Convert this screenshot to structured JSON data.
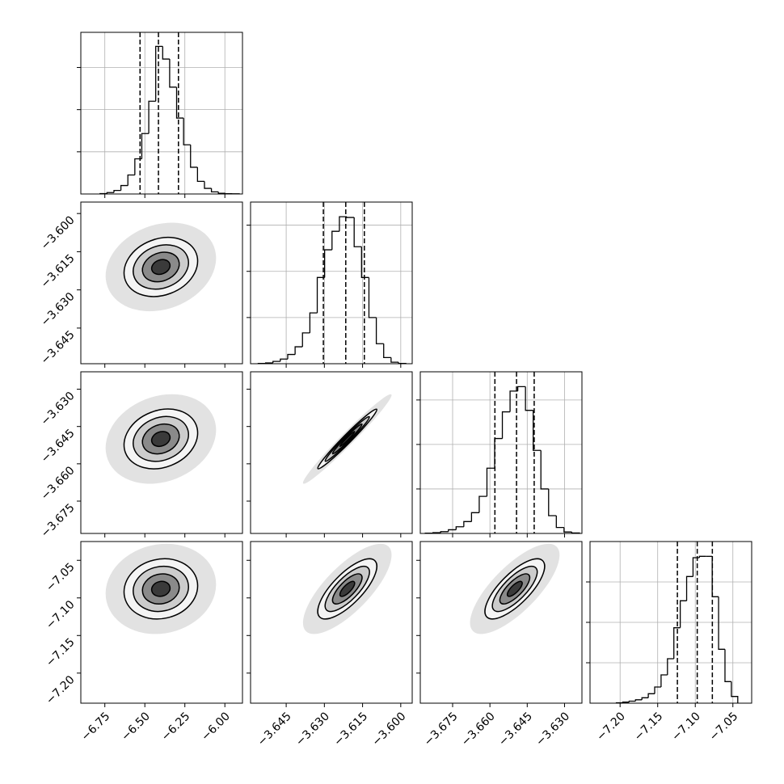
{
  "chart_data": {
    "type": "corner",
    "color": "#000000",
    "levels": [
      0.5,
      1,
      1.5,
      2
    ],
    "cloud": 3,
    "parameters": [
      {
        "lim": [
          -6.9,
          -5.89
        ],
        "mean": -6.4,
        "sd": 0.115,
        "ticks": [
          {
            "value": -6.75,
            "label": "−6.75"
          },
          {
            "value": -6.5,
            "label": "−6.50"
          },
          {
            "value": -6.25,
            "label": "−6.25"
          },
          {
            "value": -6.0,
            "label": "−6.00"
          }
        ],
        "quantiles": [
          -6.53,
          -6.415,
          -6.29
        ],
        "hist": {
          "ylim": [
            0,
            1150
          ],
          "yticks": [
            300,
            600,
            900
          ],
          "bins": [
            -6.78,
            -6.7365,
            -6.693,
            -6.6495,
            -6.606,
            -6.5625,
            -6.519,
            -6.4755,
            -6.432,
            -6.3885,
            -6.345,
            -6.3015,
            -6.258,
            -6.2145,
            -6.171,
            -6.1275,
            -6.084,
            -6.0405,
            -5.997,
            -5.9535,
            -5.91
          ],
          "counts": [
            3,
            10,
            25,
            60,
            135,
            250,
            430,
            660,
            1050,
            960,
            760,
            540,
            350,
            190,
            90,
            40,
            15,
            5,
            2,
            1
          ]
        }
      },
      {
        "lim": [
          -3.659,
          -3.5955
        ],
        "mean": -3.621,
        "sd": 0.0058,
        "ticks": [
          {
            "value": -3.645,
            "label": "−3.645"
          },
          {
            "value": -3.63,
            "label": "−3.630"
          },
          {
            "value": -3.615,
            "label": "−3.615"
          },
          {
            "value": -3.6,
            "label": "−3.600"
          }
        ],
        "quantiles": [
          -3.6304,
          -3.6216,
          -3.6143
        ],
        "hist": {
          "ylim": [
            0,
            1050
          ],
          "yticks": [
            300,
            600,
            900
          ],
          "bins": [
            -3.656,
            -3.6531,
            -3.6502,
            -3.6473,
            -3.6444,
            -3.6415,
            -3.6386,
            -3.6357,
            -3.6328,
            -3.6299,
            -3.627,
            -3.6241,
            -3.6212,
            -3.6183,
            -3.6154,
            -3.6125,
            -3.6096,
            -3.6067,
            -3.6038,
            -3.6009,
            -3.598
          ],
          "counts": [
            2,
            5,
            15,
            30,
            60,
            110,
            200,
            330,
            560,
            740,
            860,
            955,
            950,
            760,
            560,
            300,
            130,
            40,
            10,
            2
          ]
        }
      },
      {
        "lim": [
          -3.688,
          -3.623
        ],
        "mean": -3.65,
        "sd": 0.006,
        "ticks": [
          {
            "value": -3.675,
            "label": "−3.675"
          },
          {
            "value": -3.66,
            "label": "−3.660"
          },
          {
            "value": -3.645,
            "label": "−3.645"
          },
          {
            "value": -3.63,
            "label": "−3.630"
          }
        ],
        "quantiles": [
          -3.658,
          -3.6493,
          -3.6422
        ],
        "hist": {
          "ylim": [
            0,
            1090
          ],
          "yticks": [
            300,
            600,
            900
          ],
          "bins": [
            -3.686,
            -3.6829,
            -3.6798,
            -3.6767,
            -3.6736,
            -3.6705,
            -3.6674,
            -3.6643,
            -3.6612,
            -3.6581,
            -3.655,
            -3.6519,
            -3.6488,
            -3.6457,
            -3.6426,
            -3.6395,
            -3.6364,
            -3.6333,
            -3.6302,
            -3.6271,
            -3.624
          ],
          "counts": [
            2,
            5,
            12,
            25,
            45,
            80,
            140,
            250,
            440,
            640,
            820,
            960,
            990,
            830,
            560,
            300,
            120,
            40,
            10,
            3
          ]
        }
      },
      {
        "lim": [
          -7.24,
          -7.025
        ],
        "mean": -7.088,
        "sd": 0.02,
        "ticks": [
          {
            "value": -7.2,
            "label": "−7.20"
          },
          {
            "value": -7.15,
            "label": "−7.15"
          },
          {
            "value": -7.1,
            "label": "−7.10"
          },
          {
            "value": -7.05,
            "label": "−7.05"
          }
        ],
        "quantiles": [
          -7.1238,
          -7.0974,
          -7.0773
        ],
        "hist": {
          "ylim": [
            0,
            1200
          ],
          "yticks": [
            300,
            600,
            900
          ],
          "bins": [
            -7.205,
            -7.1965,
            -7.188,
            -7.1795,
            -7.171,
            -7.1625,
            -7.154,
            -7.1455,
            -7.137,
            -7.1285,
            -7.12,
            -7.1115,
            -7.103,
            -7.0945,
            -7.086,
            -7.0775,
            -7.069,
            -7.0605,
            -7.052,
            -7.0435
          ],
          "counts": [
            3,
            8,
            15,
            25,
            40,
            70,
            120,
            210,
            330,
            560,
            760,
            940,
            1080,
            1090,
            1090,
            790,
            400,
            160,
            50
          ]
        }
      }
    ],
    "pairs": [
      {
        "x": 0,
        "y": 1,
        "rho": 0.2
      },
      {
        "x": 0,
        "y": 2,
        "rho": 0.2
      },
      {
        "x": 1,
        "y": 2,
        "rho": 0.98
      },
      {
        "x": 0,
        "y": 3,
        "rho": 0.1
      },
      {
        "x": 1,
        "y": 3,
        "rho": 0.75
      },
      {
        "x": 2,
        "y": 3,
        "rho": 0.75
      }
    ]
  }
}
